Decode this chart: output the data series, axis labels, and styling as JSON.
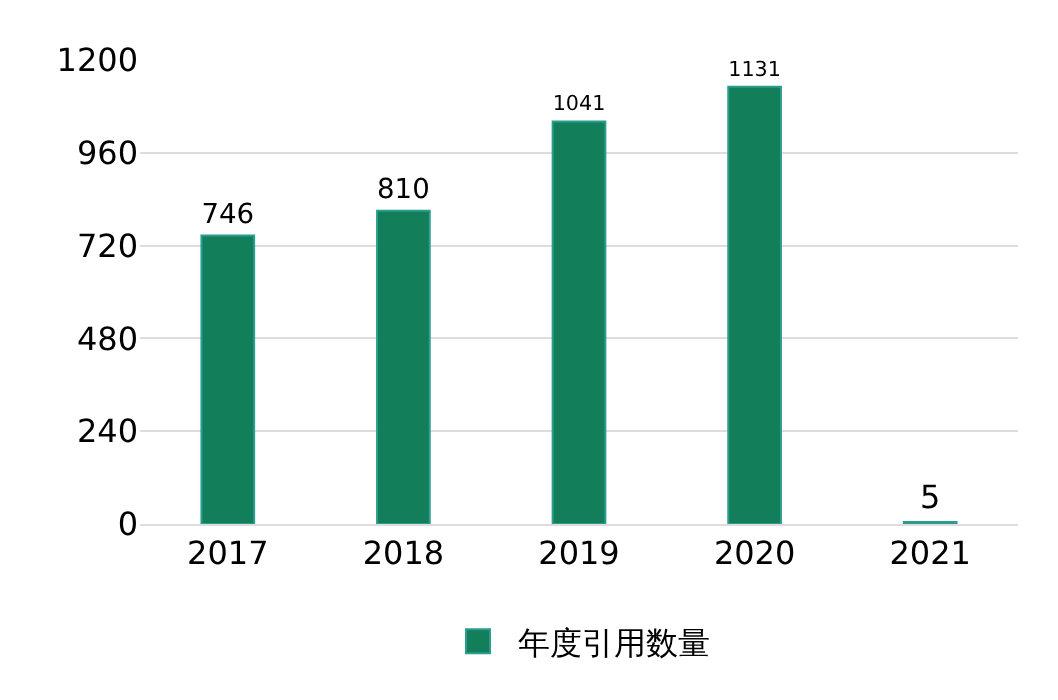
{
  "chart_data": {
    "type": "bar",
    "categories": [
      "2017",
      "2018",
      "2019",
      "2020",
      "2021"
    ],
    "series": [
      {
        "name": "年度引用数量",
        "color": "#127f5a",
        "values": [
          746,
          810,
          1041,
          1131,
          5
        ]
      }
    ],
    "ylim": [
      0,
      1200
    ],
    "yticks": [
      0,
      240,
      480,
      720,
      960,
      1200
    ],
    "grid": "y",
    "legend": "bottom",
    "data_labels": true
  }
}
